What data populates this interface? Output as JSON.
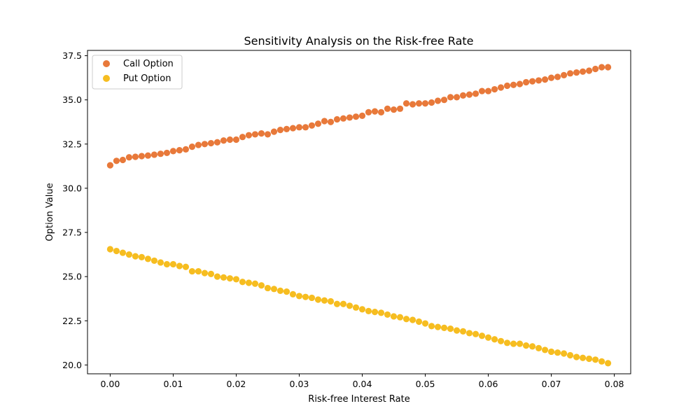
{
  "chart_data": {
    "type": "scatter",
    "title": "Sensitivity Analysis on the Risk-free Rate",
    "xlabel": "Risk-free Interest Rate",
    "ylabel": "Option Value",
    "xlim": [
      -0.0036,
      0.0826
    ],
    "ylim": [
      19.5,
      37.8
    ],
    "xticks": [
      0.0,
      0.01,
      0.02,
      0.03,
      0.04,
      0.05,
      0.06,
      0.07,
      0.08
    ],
    "xtick_labels": [
      "0.00",
      "0.01",
      "0.02",
      "0.03",
      "0.04",
      "0.05",
      "0.06",
      "0.07",
      "0.08"
    ],
    "yticks": [
      20.0,
      22.5,
      25.0,
      27.5,
      30.0,
      32.5,
      35.0,
      37.5
    ],
    "ytick_labels": [
      "20.0",
      "22.5",
      "25.0",
      "27.5",
      "30.0",
      "32.5",
      "35.0",
      "37.5"
    ],
    "grid": false,
    "legend_position": "top-left",
    "x": [
      0.0,
      0.001,
      0.002,
      0.003,
      0.004,
      0.005,
      0.006,
      0.007,
      0.008,
      0.009,
      0.01,
      0.011,
      0.012,
      0.013,
      0.014,
      0.015,
      0.016,
      0.017,
      0.018,
      0.019,
      0.02,
      0.021,
      0.022,
      0.023,
      0.024,
      0.025,
      0.026,
      0.027,
      0.028,
      0.029,
      0.03,
      0.031,
      0.032,
      0.033,
      0.034,
      0.035,
      0.036,
      0.037,
      0.038,
      0.039,
      0.04,
      0.041,
      0.042,
      0.043,
      0.044,
      0.045,
      0.046,
      0.047,
      0.048,
      0.049,
      0.05,
      0.051,
      0.052,
      0.053,
      0.054,
      0.055,
      0.056,
      0.057,
      0.058,
      0.059,
      0.06,
      0.061,
      0.062,
      0.063,
      0.064,
      0.065,
      0.066,
      0.067,
      0.068,
      0.069,
      0.07,
      0.071,
      0.072,
      0.073,
      0.074,
      0.075,
      0.076,
      0.077,
      0.078,
      0.079
    ],
    "series": [
      {
        "name": "Call Option",
        "color": "#e8793a",
        "values": [
          31.3,
          31.55,
          31.6,
          31.75,
          31.78,
          31.82,
          31.85,
          31.9,
          31.95,
          32.0,
          32.1,
          32.15,
          32.2,
          32.35,
          32.45,
          32.5,
          32.55,
          32.6,
          32.7,
          32.75,
          32.75,
          32.9,
          33.0,
          33.05,
          33.1,
          33.05,
          33.2,
          33.3,
          33.35,
          33.4,
          33.45,
          33.45,
          33.55,
          33.65,
          33.8,
          33.75,
          33.9,
          33.95,
          34.0,
          34.05,
          34.1,
          34.3,
          34.35,
          34.3,
          34.5,
          34.45,
          34.5,
          34.8,
          34.75,
          34.8,
          34.8,
          34.85,
          34.95,
          35.0,
          35.15,
          35.15,
          35.25,
          35.3,
          35.35,
          35.5,
          35.5,
          35.6,
          35.7,
          35.8,
          35.85,
          35.9,
          36.0,
          36.05,
          36.1,
          36.15,
          36.25,
          36.3,
          36.4,
          36.5,
          36.55,
          36.6,
          36.65,
          36.75,
          36.85,
          36.85
        ]
      },
      {
        "name": "Put Option",
        "color": "#f6bd20",
        "values": [
          26.55,
          26.45,
          26.35,
          26.25,
          26.15,
          26.1,
          26.0,
          25.9,
          25.8,
          25.7,
          25.7,
          25.6,
          25.55,
          25.3,
          25.3,
          25.2,
          25.15,
          25.0,
          24.95,
          24.9,
          24.85,
          24.7,
          24.65,
          24.6,
          24.5,
          24.35,
          24.3,
          24.2,
          24.15,
          24.0,
          23.9,
          23.85,
          23.8,
          23.7,
          23.65,
          23.6,
          23.45,
          23.45,
          23.35,
          23.25,
          23.15,
          23.05,
          23.0,
          22.95,
          22.85,
          22.75,
          22.7,
          22.6,
          22.55,
          22.45,
          22.35,
          22.2,
          22.15,
          22.1,
          22.05,
          21.95,
          21.9,
          21.8,
          21.75,
          21.65,
          21.55,
          21.45,
          21.35,
          21.25,
          21.2,
          21.2,
          21.1,
          21.05,
          20.95,
          20.85,
          20.75,
          20.7,
          20.65,
          20.55,
          20.45,
          20.4,
          20.35,
          20.3,
          20.2,
          20.1
        ]
      }
    ]
  }
}
